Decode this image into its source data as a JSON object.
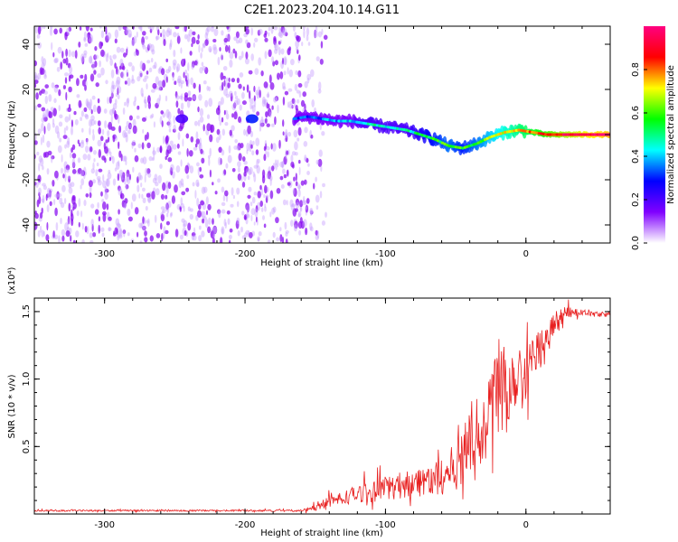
{
  "title": "C2E1.2023.204.10.14.G11",
  "chart_data": [
    {
      "type": "heatmap",
      "name": "spectrogram",
      "xlabel": "Height of straight line (km)",
      "ylabel": "Frequency (Hz)",
      "xlim": [
        -350,
        60
      ],
      "ylim": [
        -48,
        48
      ],
      "x_ticks": [
        -300,
        -200,
        -100,
        0
      ],
      "x_tick_labels": [
        "-300",
        "-200",
        "-100",
        "0"
      ],
      "y_ticks": [
        -40,
        -20,
        0,
        20,
        40
      ],
      "y_tick_labels": [
        "-40",
        "-20",
        "0",
        "20",
        "40"
      ],
      "signal_trace": {
        "x": [
          -165,
          -155,
          -145,
          -135,
          -125,
          -115,
          -105,
          -95,
          -85,
          -75,
          -65,
          -55,
          -45,
          -35,
          -25,
          -15,
          -5,
          5,
          15,
          25,
          40,
          60
        ],
        "y": [
          7,
          8,
          7,
          6,
          6,
          5,
          4,
          3,
          2,
          0,
          -2,
          -5,
          -6,
          -4,
          -1,
          1,
          2,
          1,
          0,
          0,
          0,
          0
        ],
        "amplitude": [
          0.3,
          0.3,
          0.35,
          0.4,
          0.4,
          0.45,
          0.45,
          0.45,
          0.45,
          0.5,
          0.55,
          0.6,
          0.55,
          0.6,
          0.65,
          0.7,
          0.75,
          0.8,
          0.85,
          0.9,
          0.95,
          1.0
        ]
      },
      "noise_region": {
        "x_from": -350,
        "x_to": -155,
        "amplitude": 0.15
      }
    },
    {
      "type": "colorbar",
      "label": "Normalized spectral amplitude",
      "range": [
        0.0,
        1.0
      ],
      "ticks": [
        0.0,
        0.2,
        0.4,
        0.6,
        0.8
      ],
      "tick_labels": [
        "0.0",
        "0.2",
        "0.4",
        "0.6",
        "0.8"
      ],
      "colors": [
        "#ffffff",
        "#8000ff",
        "#0000ff",
        "#00ffff",
        "#00ff00",
        "#ffff00",
        "#ff0000",
        "#ff0080"
      ]
    },
    {
      "type": "line",
      "name": "snr",
      "xlabel": "Height of straight line (km)",
      "ylabel": "SNR (10 * v/v)",
      "y_multiplier": "(x10⁴)",
      "color": "#e82020",
      "xlim": [
        -350,
        60
      ],
      "ylim": [
        0,
        16000
      ],
      "x_ticks": [
        -300,
        -200,
        -100,
        0
      ],
      "x_tick_labels": [
        "-300",
        "-200",
        "-100",
        "0"
      ],
      "y_ticks": [
        5000,
        10000,
        15000
      ],
      "y_tick_labels": [
        "0.5",
        "1.0",
        "1.5"
      ],
      "x": [
        -350,
        -300,
        -250,
        -200,
        -160,
        -150,
        -140,
        -130,
        -120,
        -110,
        -100,
        -90,
        -80,
        -70,
        -60,
        -50,
        -45,
        -40,
        -35,
        -30,
        -25,
        -20,
        -15,
        -10,
        -5,
        0,
        5,
        10,
        15,
        20,
        25,
        30,
        40,
        50,
        60
      ],
      "y": [
        250,
        250,
        250,
        250,
        250,
        500,
        900,
        1200,
        1500,
        1600,
        1900,
        2100,
        2400,
        2500,
        2800,
        3500,
        4600,
        5500,
        6000,
        7000,
        8500,
        9500,
        9000,
        10000,
        11000,
        10500,
        11500,
        12500,
        13000,
        14000,
        14500,
        15000,
        14900,
        14800,
        14800
      ],
      "noise": [
        60,
        60,
        60,
        60,
        80,
        250,
        400,
        550,
        650,
        750,
        900,
        1000,
        1100,
        1200,
        1400,
        1800,
        2200,
        2800,
        3000,
        3200,
        3500,
        3500,
        3600,
        3000,
        2500,
        2000,
        1700,
        1400,
        1200,
        900,
        700,
        450,
        250,
        200,
        200
      ]
    }
  ]
}
